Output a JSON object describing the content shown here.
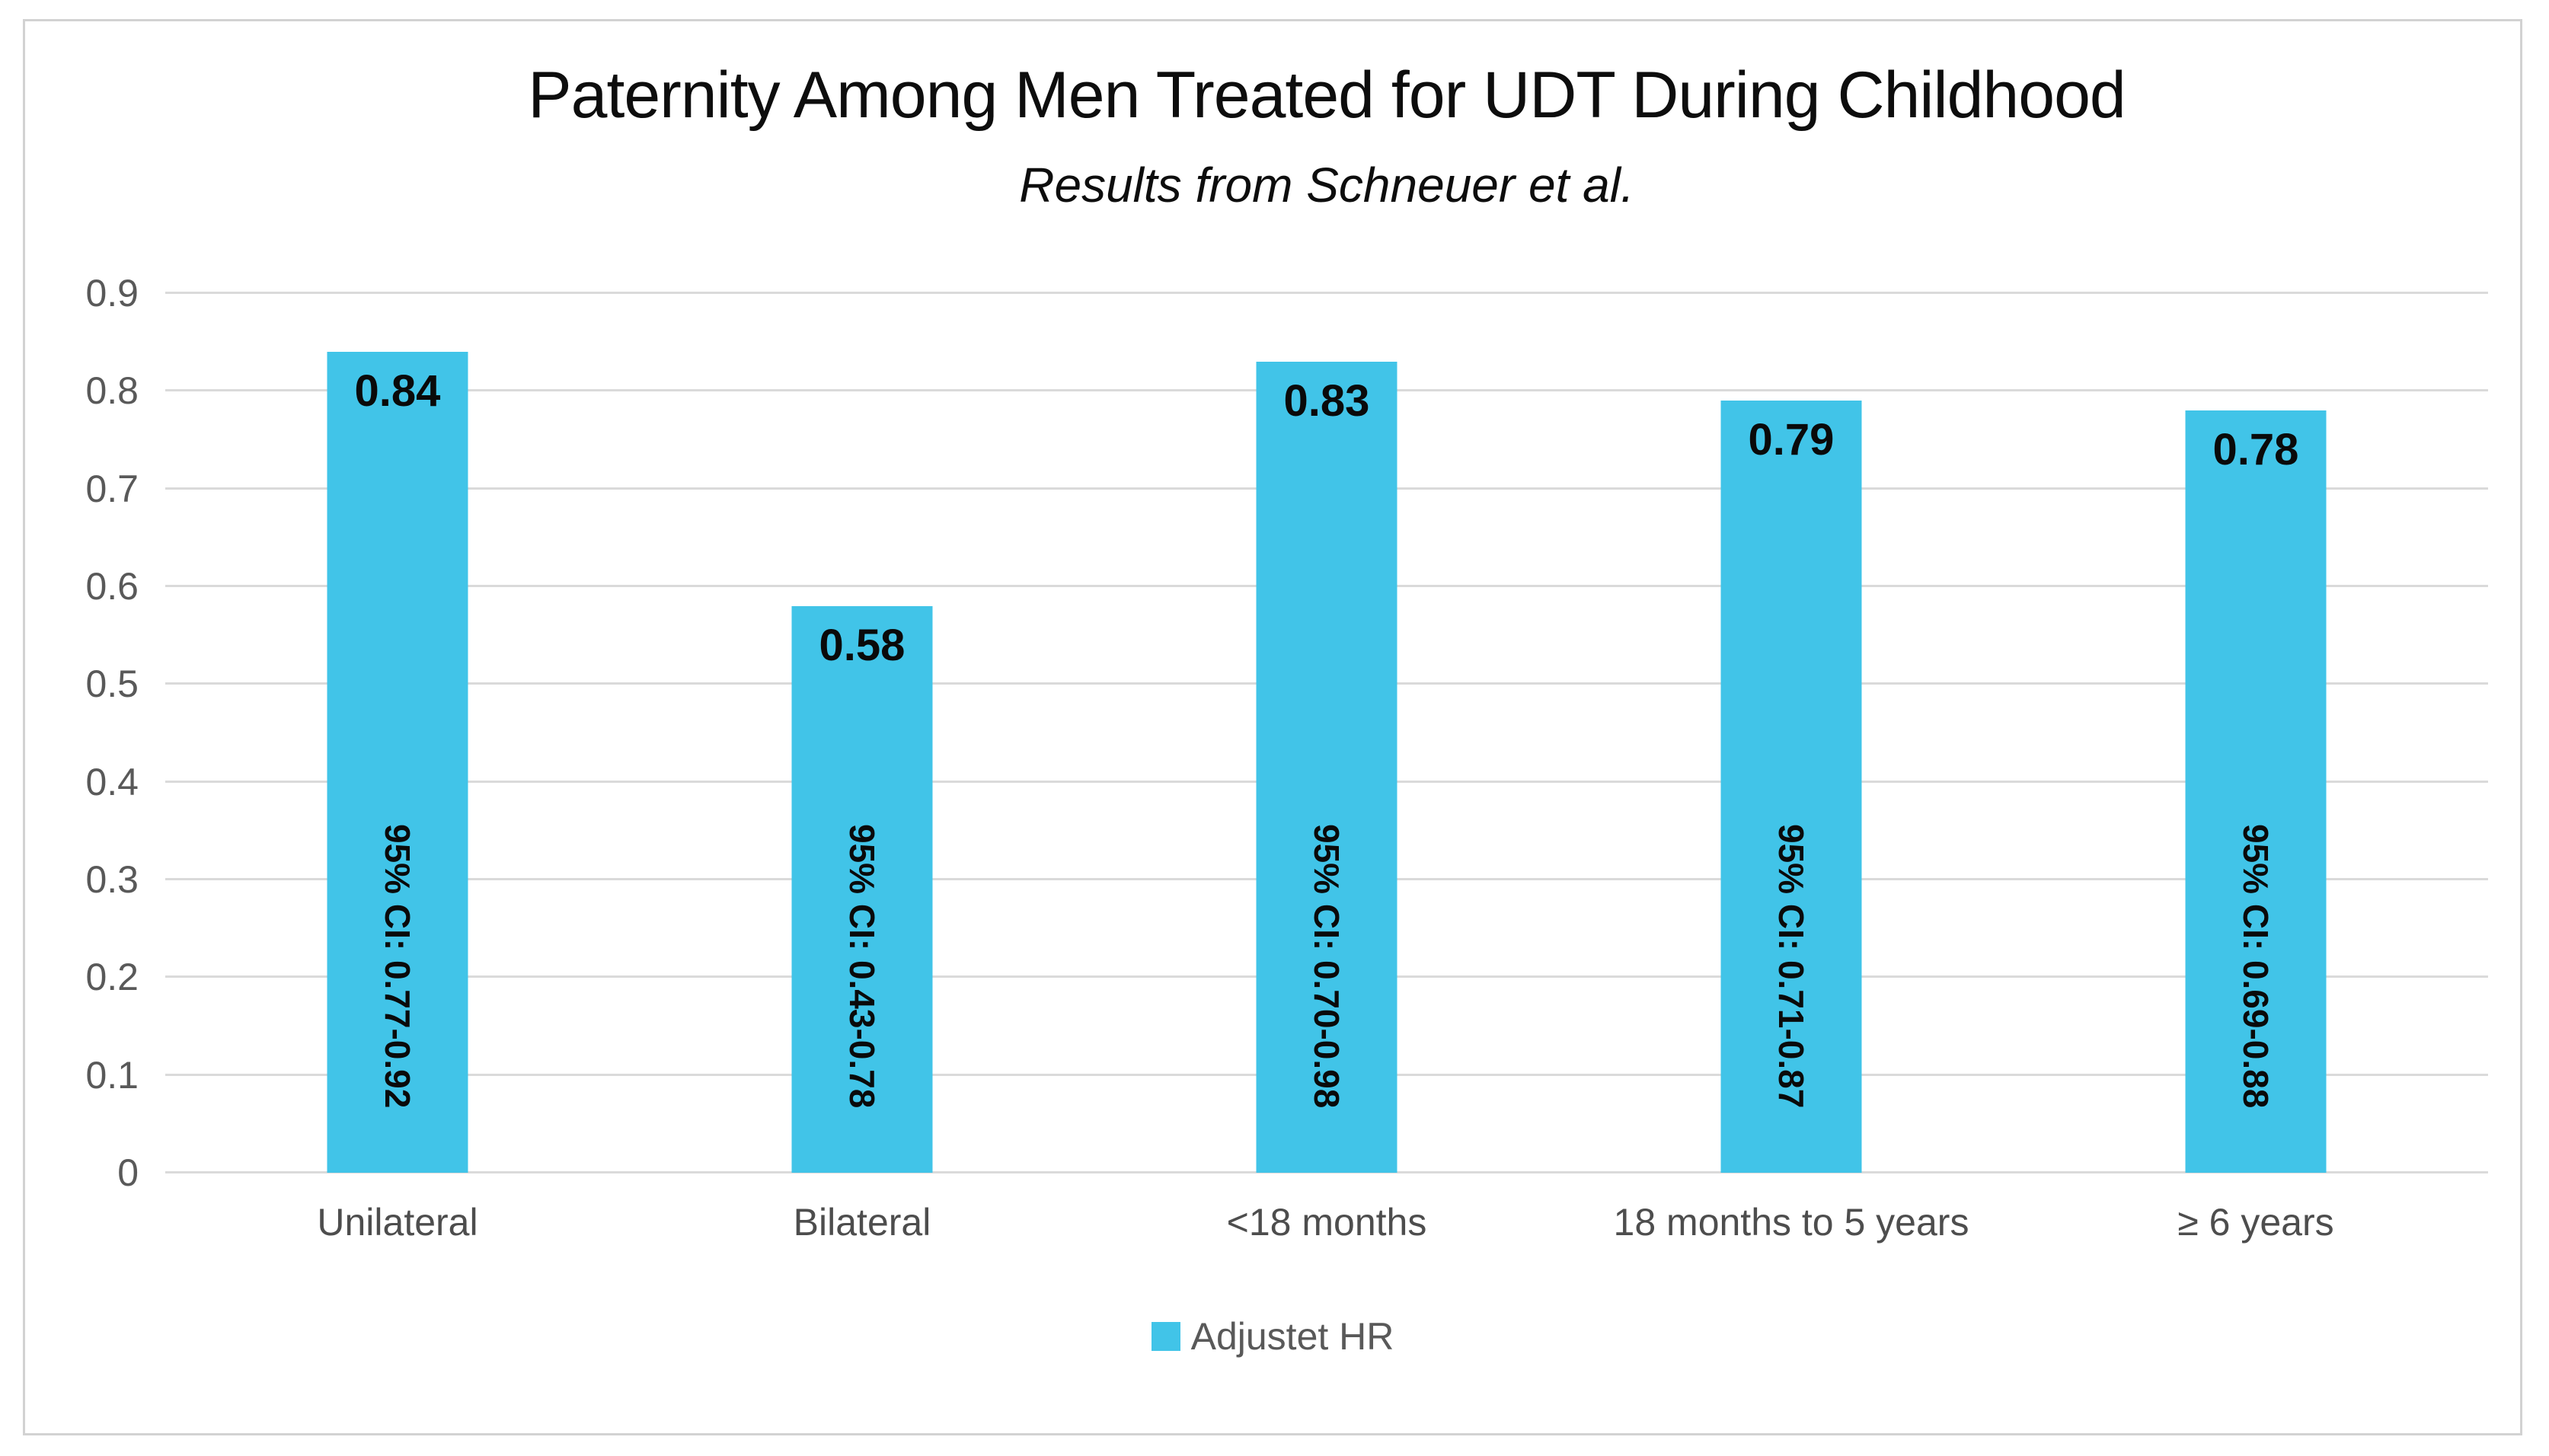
{
  "chart_data": {
    "type": "bar",
    "title": "Paternity Among Men Treated for UDT During Childhood",
    "subtitle": "Results from Schneuer et al.",
    "categories": [
      "Unilateral",
      "Bilateral",
      "<18 months",
      "18 months to 5 years",
      "≥ 6 years"
    ],
    "series": [
      {
        "name": "Adjustet HR",
        "values": [
          0.84,
          0.58,
          0.83,
          0.79,
          0.78
        ],
        "value_labels": [
          "0.84",
          "0.58",
          "0.83",
          "0.79",
          "0.78"
        ],
        "ci_labels": [
          "95% CI: 0.77-0.92",
          "95% CI: 0.43-0.78",
          "95% CI: 0.70-0.98",
          "95% CI: 0.71-0.87",
          "95% CI: 0.69-0.88"
        ]
      }
    ],
    "ylim": [
      0,
      0.9
    ],
    "yticks": [
      0,
      0.1,
      0.2,
      0.3,
      0.4,
      0.5,
      0.6,
      0.7,
      0.8,
      0.9
    ],
    "ytick_labels": [
      "0",
      "0.1",
      "0.2",
      "0.3",
      "0.4",
      "0.5",
      "0.6",
      "0.7",
      "0.8",
      "0.9"
    ],
    "grid": true,
    "legend_position": "bottom",
    "colors": {
      "bar": "#41C4E8",
      "gridline": "#DADADA",
      "axis_text": "#595959",
      "data_label": "#0A0A0A"
    }
  }
}
